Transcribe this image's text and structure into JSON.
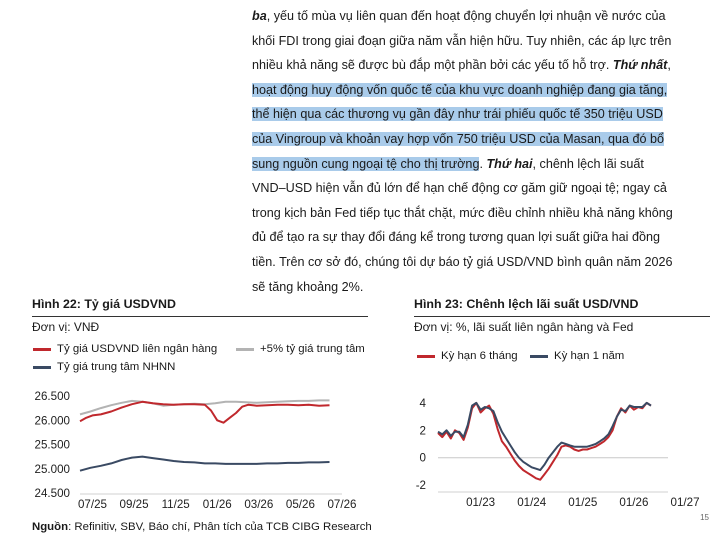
{
  "paragraph": {
    "lines": [
      [
        {
          "t": "ba",
          "s": "bi"
        },
        {
          "t": ", yếu tố mùa vụ liên quan đến hoạt động chuyển lợi nhuận về nước của",
          "s": ""
        }
      ],
      [
        {
          "t": "khối FDI trong giai đoạn giữa năm vẫn hiện hữu. Tuy nhiên, các áp lực trên",
          "s": ""
        }
      ],
      [
        {
          "t": "nhiều khả năng sẽ được bù đắp một phần bởi các yếu tố hỗ trợ. ",
          "s": ""
        },
        {
          "t": "Thứ nhất",
          "s": "bi"
        },
        {
          "t": ",",
          "s": ""
        }
      ],
      [
        {
          "t": "hoạt động huy động vốn quốc tế của khu vực doanh nghiệp đang gia tăng,",
          "s": "hl"
        }
      ],
      [
        {
          "t": "thể hiện qua các thương vụ gần đây như trái phiếu quốc tế 350 triệu USD",
          "s": "hl"
        }
      ],
      [
        {
          "t": "của Vingroup và khoản vay hợp vốn 750 triệu USD của Masan, qua đó bổ",
          "s": "hl"
        }
      ],
      [
        {
          "t": "sung nguồn cung ngoại tệ cho thị trường",
          "s": "hl"
        },
        {
          "t": ". ",
          "s": ""
        },
        {
          "t": "Thứ hai",
          "s": "bi"
        },
        {
          "t": ", chênh lệch lãi suất",
          "s": ""
        }
      ],
      [
        {
          "t": "VND–USD hiện vẫn đủ lớn để hạn chế động cơ găm giữ ngoại tệ; ngay cả",
          "s": ""
        }
      ],
      [
        {
          "t": "trong kịch bản Fed tiếp tục thắt chặt, mức điều chỉnh nhiều khả năng không",
          "s": ""
        }
      ],
      [
        {
          "t": "đủ để tạo ra sự thay đổi đáng kể trong tương quan lợi suất giữa hai đồng",
          "s": ""
        }
      ],
      [
        {
          "t": "tiền. Trên cơ sở đó, chúng tôi dự báo tỷ giá USD/VND bình quân năm 2026",
          "s": ""
        }
      ],
      [
        {
          "t": "sẽ tăng khoảng 2%.",
          "s": ""
        }
      ]
    ]
  },
  "figure22": {
    "title": "Hình 22: Tỷ giá USDVND",
    "unit": "Đơn vị: VNĐ",
    "legend": {
      "interbank": "Tỷ giá USDVND liên ngân hàng",
      "band": "+5% tỷ giá trung tâm",
      "central": "Tỷ giá trung tâm NHNN"
    }
  },
  "figure23": {
    "title": "Hình 23: Chênh lệch lãi suất USD/VND",
    "unit": "Đơn vị: %, lãi suất liên ngân hàng và Fed",
    "legend": {
      "m6": "Kỳ hạn 6 tháng",
      "y1": "Kỳ hạn 1 năm"
    }
  },
  "source": {
    "label": "Nguồn",
    "text": ": Refinitiv, SBV, Báo chí, Phân tích của TCB CIBG Research"
  },
  "page_number": "15",
  "colors": {
    "red": "#c0282d",
    "gray": "#b3b3b3",
    "navy": "#3a4a63",
    "highlight": "#a9cbea"
  },
  "chart_data": [
    {
      "type": "line",
      "yticks": [
        "24.500",
        "25.000",
        "25.500",
        "26.000",
        "26.500"
      ],
      "xticks": [
        "07/25",
        "09/25",
        "11/25",
        "01/26",
        "03/26",
        "05/26",
        "07/26"
      ],
      "ylim": [
        24500,
        26500
      ],
      "xlim": [
        0,
        12.6
      ],
      "x_tick_positions": [
        0.6,
        2.6,
        4.6,
        6.6,
        8.6,
        10.6,
        12.6
      ],
      "series": [
        {
          "name": "+5% tỷ giá trung tâm",
          "color": "#b3b3b3",
          "x": [
            0,
            0.5,
            1,
            1.5,
            2,
            2.5,
            3,
            3.5,
            4,
            4.5,
            5,
            5.5,
            6,
            6.5,
            7,
            7.5,
            8,
            8.5,
            9,
            9.5,
            10,
            10.5,
            11,
            11.5,
            12
          ],
          "y": [
            26120,
            26180,
            26250,
            26310,
            26360,
            26400,
            26380,
            26350,
            26300,
            26320,
            26330,
            26340,
            26330,
            26350,
            26380,
            26380,
            26370,
            26360,
            26370,
            26380,
            26390,
            26400,
            26400,
            26410,
            26410
          ]
        },
        {
          "name": "Tỷ giá USDVND liên ngân hàng",
          "color": "#c0282d",
          "x": [
            0,
            0.3,
            0.6,
            1,
            1.5,
            2,
            2.5,
            3,
            3.5,
            4,
            4.5,
            5,
            5.5,
            6,
            6.3,
            6.6,
            6.9,
            7.2,
            7.5,
            7.8,
            8.1,
            8.5,
            9,
            9.5,
            10,
            10.5,
            11,
            11.5,
            12
          ],
          "y": [
            25980,
            26050,
            26100,
            26120,
            26180,
            26260,
            26330,
            26380,
            26350,
            26330,
            26320,
            26330,
            26330,
            26320,
            26200,
            26000,
            25950,
            26050,
            26150,
            26280,
            26320,
            26300,
            26310,
            26320,
            26320,
            26310,
            26320,
            26300,
            26310
          ]
        },
        {
          "name": "Tỷ giá trung tâm NHNN",
          "color": "#3a4a63",
          "x": [
            0,
            0.5,
            1,
            1.5,
            2,
            2.5,
            3,
            3.5,
            4,
            4.5,
            5,
            5.5,
            6,
            6.5,
            7,
            7.5,
            8,
            8.5,
            9,
            9.5,
            10,
            10.5,
            11,
            11.5,
            12
          ],
          "y": [
            24960,
            25020,
            25060,
            25110,
            25180,
            25230,
            25250,
            25220,
            25190,
            25160,
            25140,
            25130,
            25110,
            25110,
            25100,
            25100,
            25100,
            25100,
            25110,
            25110,
            25120,
            25120,
            25130,
            25130,
            25140
          ]
        }
      ]
    },
    {
      "type": "line",
      "yticks": [
        "-2",
        "0",
        "2",
        "4"
      ],
      "xticks": [
        "01/23",
        "01/24",
        "01/25",
        "01/26",
        "01/27"
      ],
      "ylim": [
        -2.5,
        4.5
      ],
      "xlim": [
        0,
        54
      ],
      "x_tick_positions": [
        10,
        22,
        34,
        46,
        58
      ],
      "series": [
        {
          "name": "Kỳ hạn 6 tháng",
          "color": "#c0282d",
          "x": [
            0,
            1,
            2,
            3,
            4,
            5,
            6,
            7,
            8,
            9,
            10,
            11,
            12,
            13,
            14,
            15,
            16,
            17,
            18,
            19,
            20,
            21,
            22,
            23,
            24,
            25,
            26,
            27,
            28,
            29,
            30,
            31,
            32,
            33,
            34,
            35,
            36,
            37,
            38,
            39,
            40,
            41,
            42,
            43,
            44,
            45,
            46,
            47,
            48,
            49,
            50
          ],
          "y": [
            1.8,
            1.5,
            1.9,
            1.4,
            2.0,
            1.8,
            1.3,
            2.2,
            3.6,
            4.0,
            3.3,
            3.6,
            3.8,
            3.2,
            2.1,
            1.2,
            0.8,
            0.3,
            -0.2,
            -0.6,
            -0.9,
            -1.1,
            -1.3,
            -1.5,
            -1.6,
            -1.2,
            -0.8,
            -0.3,
            0.2,
            0.8,
            0.9,
            0.8,
            0.6,
            0.5,
            0.6,
            0.6,
            0.7,
            0.8,
            1.0,
            1.2,
            1.5,
            2.0,
            3.0,
            3.6,
            3.3,
            3.8,
            3.5,
            3.7,
            3.6,
            4.0,
            3.8
          ]
        },
        {
          "name": "Kỳ hạn 1 năm",
          "color": "#3a4a63",
          "x": [
            0,
            1,
            2,
            3,
            4,
            5,
            6,
            7,
            8,
            9,
            10,
            11,
            12,
            13,
            14,
            15,
            16,
            17,
            18,
            19,
            20,
            21,
            22,
            23,
            24,
            25,
            26,
            27,
            28,
            29,
            30,
            31,
            32,
            33,
            34,
            35,
            36,
            37,
            38,
            39,
            40,
            41,
            42,
            43,
            44,
            45,
            46,
            47,
            48,
            49,
            50
          ],
          "y": [
            1.9,
            1.7,
            2.0,
            1.6,
            1.9,
            1.9,
            1.5,
            2.4,
            3.8,
            4.0,
            3.5,
            3.7,
            3.6,
            3.4,
            2.6,
            1.9,
            1.4,
            0.9,
            0.4,
            0.0,
            -0.3,
            -0.5,
            -0.7,
            -0.8,
            -0.9,
            -0.5,
            0.0,
            0.4,
            0.8,
            1.1,
            1.0,
            0.9,
            0.8,
            0.8,
            0.8,
            0.8,
            0.9,
            1.0,
            1.2,
            1.4,
            1.7,
            2.3,
            3.0,
            3.5,
            3.4,
            3.8,
            3.7,
            3.7,
            3.7,
            4.0,
            3.8
          ]
        }
      ]
    }
  ]
}
